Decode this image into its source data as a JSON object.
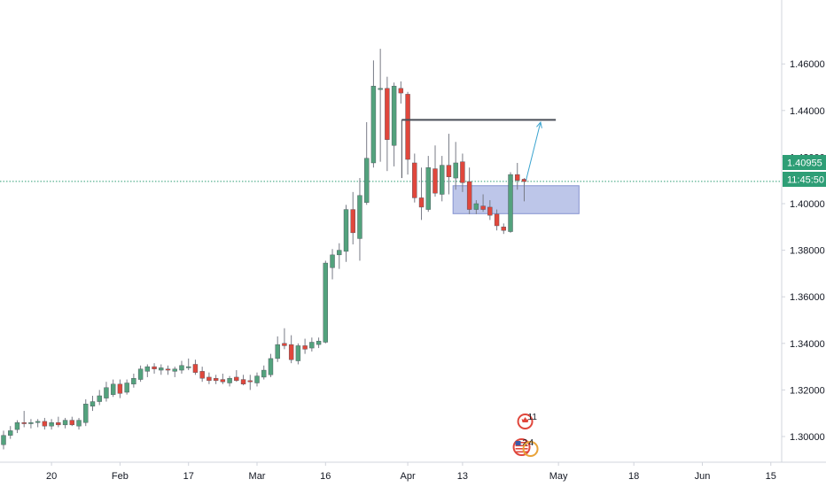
{
  "colors": {
    "up": "#53a27d",
    "down": "#e0473c",
    "wick": "#787b86",
    "price_line": "#2e9e76",
    "zone_fill": "#9aa7dd",
    "zone_stroke": "#8593d1",
    "resistance": "#4a4e58",
    "projection": "#3aa3cf",
    "axis_line": "#d1d4dc",
    "text": "#131722"
  },
  "current_price": "1.40955",
  "countdown": "11:45:50",
  "events": [
    {
      "icon": "canada-flag-icon",
      "count": "11",
      "date": "Apr 20"
    },
    {
      "icon": "usa-flag-icon",
      "count": "2",
      "date": "Apr 20"
    },
    {
      "icon": "uk-flag-icon",
      "count": "4",
      "date": "Apr 20"
    }
  ],
  "chart_data": {
    "type": "candlestick",
    "title": "",
    "xlabel": "",
    "ylabel": "",
    "ylim": [
      1.2855,
      1.4695
    ],
    "y_ticks": [
      "1.30000",
      "1.32000",
      "1.34000",
      "1.36000",
      "1.38000",
      "1.40000",
      "1.42000",
      "1.44000",
      "1.46000"
    ],
    "x_ticks": [
      "20",
      "Feb",
      "17",
      "Mar",
      "16",
      "Apr",
      "13",
      "May",
      "18",
      "Jun",
      "15"
    ],
    "grid": false,
    "legend": "none",
    "candles": [
      {
        "date": "Jan 09",
        "o": 1.2965,
        "h": 1.3025,
        "l": 1.2945,
        "c": 1.3005
      },
      {
        "date": "Jan 10",
        "o": 1.3005,
        "h": 1.3045,
        "l": 1.299,
        "c": 1.3025
      },
      {
        "date": "Jan 13",
        "o": 1.303,
        "h": 1.307,
        "l": 1.3015,
        "c": 1.306
      },
      {
        "date": "Jan 14",
        "o": 1.306,
        "h": 1.311,
        "l": 1.304,
        "c": 1.3055
      },
      {
        "date": "Jan 15",
        "o": 1.3055,
        "h": 1.3075,
        "l": 1.3035,
        "c": 1.306
      },
      {
        "date": "Jan 16",
        "o": 1.306,
        "h": 1.3075,
        "l": 1.304,
        "c": 1.3065
      },
      {
        "date": "Jan 17",
        "o": 1.3065,
        "h": 1.308,
        "l": 1.303,
        "c": 1.3045
      },
      {
        "date": "Jan 20",
        "o": 1.3045,
        "h": 1.3075,
        "l": 1.303,
        "c": 1.306
      },
      {
        "date": "Jan 21",
        "o": 1.306,
        "h": 1.3085,
        "l": 1.304,
        "c": 1.305
      },
      {
        "date": "Jan 22",
        "o": 1.305,
        "h": 1.308,
        "l": 1.3035,
        "c": 1.307
      },
      {
        "date": "Jan 23",
        "o": 1.307,
        "h": 1.3085,
        "l": 1.3045,
        "c": 1.305
      },
      {
        "date": "Jan 24",
        "o": 1.3045,
        "h": 1.308,
        "l": 1.303,
        "c": 1.307
      },
      {
        "date": "Jan 27",
        "o": 1.306,
        "h": 1.316,
        "l": 1.3045,
        "c": 1.314
      },
      {
        "date": "Jan 28",
        "o": 1.313,
        "h": 1.3175,
        "l": 1.311,
        "c": 1.315
      },
      {
        "date": "Jan 29",
        "o": 1.315,
        "h": 1.32,
        "l": 1.3135,
        "c": 1.3175
      },
      {
        "date": "Jan 30",
        "o": 1.3165,
        "h": 1.3235,
        "l": 1.315,
        "c": 1.321
      },
      {
        "date": "Jan 31",
        "o": 1.318,
        "h": 1.3245,
        "l": 1.317,
        "c": 1.3225
      },
      {
        "date": "Feb 03",
        "o": 1.3225,
        "h": 1.3245,
        "l": 1.3165,
        "c": 1.3185
      },
      {
        "date": "Feb 04",
        "o": 1.319,
        "h": 1.3245,
        "l": 1.318,
        "c": 1.323
      },
      {
        "date": "Feb 05",
        "o": 1.3225,
        "h": 1.327,
        "l": 1.321,
        "c": 1.325
      },
      {
        "date": "Feb 06",
        "o": 1.3245,
        "h": 1.3305,
        "l": 1.3235,
        "c": 1.329
      },
      {
        "date": "Feb 07",
        "o": 1.328,
        "h": 1.331,
        "l": 1.3255,
        "c": 1.33
      },
      {
        "date": "Feb 10",
        "o": 1.33,
        "h": 1.3315,
        "l": 1.327,
        "c": 1.329
      },
      {
        "date": "Feb 11",
        "o": 1.3285,
        "h": 1.331,
        "l": 1.3265,
        "c": 1.3295
      },
      {
        "date": "Feb 12",
        "o": 1.329,
        "h": 1.3305,
        "l": 1.3265,
        "c": 1.3285
      },
      {
        "date": "Feb 13",
        "o": 1.328,
        "h": 1.33,
        "l": 1.3255,
        "c": 1.329
      },
      {
        "date": "Feb 14",
        "o": 1.3285,
        "h": 1.3325,
        "l": 1.327,
        "c": 1.3305
      },
      {
        "date": "Feb 17",
        "o": 1.3295,
        "h": 1.3335,
        "l": 1.3285,
        "c": 1.33
      },
      {
        "date": "Feb 18",
        "o": 1.331,
        "h": 1.333,
        "l": 1.3265,
        "c": 1.3275
      },
      {
        "date": "Feb 19",
        "o": 1.328,
        "h": 1.33,
        "l": 1.3235,
        "c": 1.325
      },
      {
        "date": "Feb 20",
        "o": 1.3255,
        "h": 1.3275,
        "l": 1.3225,
        "c": 1.324
      },
      {
        "date": "Feb 21",
        "o": 1.325,
        "h": 1.3265,
        "l": 1.3225,
        "c": 1.324
      },
      {
        "date": "Feb 24",
        "o": 1.3245,
        "h": 1.327,
        "l": 1.3225,
        "c": 1.3235
      },
      {
        "date": "Feb 25",
        "o": 1.323,
        "h": 1.326,
        "l": 1.3215,
        "c": 1.325
      },
      {
        "date": "Feb 26",
        "o": 1.3255,
        "h": 1.3285,
        "l": 1.3235,
        "c": 1.324
      },
      {
        "date": "Feb 27",
        "o": 1.3245,
        "h": 1.3265,
        "l": 1.322,
        "c": 1.3225
      },
      {
        "date": "Feb 28",
        "o": 1.324,
        "h": 1.3265,
        "l": 1.32,
        "c": 1.3235
      },
      {
        "date": "Mar 02",
        "o": 1.323,
        "h": 1.3275,
        "l": 1.3215,
        "c": 1.326
      },
      {
        "date": "Mar 03",
        "o": 1.3255,
        "h": 1.3305,
        "l": 1.3245,
        "c": 1.3285
      },
      {
        "date": "Mar 04",
        "o": 1.3265,
        "h": 1.3355,
        "l": 1.3255,
        "c": 1.3335
      },
      {
        "date": "Mar 05",
        "o": 1.3335,
        "h": 1.343,
        "l": 1.332,
        "c": 1.3395
      },
      {
        "date": "Mar 06",
        "o": 1.34,
        "h": 1.3465,
        "l": 1.3375,
        "c": 1.339
      },
      {
        "date": "Mar 09",
        "o": 1.3395,
        "h": 1.3435,
        "l": 1.3315,
        "c": 1.333
      },
      {
        "date": "Mar 10",
        "o": 1.3325,
        "h": 1.34,
        "l": 1.331,
        "c": 1.339
      },
      {
        "date": "Mar 11",
        "o": 1.339,
        "h": 1.342,
        "l": 1.3355,
        "c": 1.3375
      },
      {
        "date": "Mar 12",
        "o": 1.338,
        "h": 1.3425,
        "l": 1.3365,
        "c": 1.3405
      },
      {
        "date": "Mar 13",
        "o": 1.3395,
        "h": 1.3425,
        "l": 1.338,
        "c": 1.341
      },
      {
        "date": "Mar 16",
        "o": 1.3405,
        "h": 1.3755,
        "l": 1.34,
        "c": 1.3745
      },
      {
        "date": "Mar 17",
        "o": 1.3725,
        "h": 1.3805,
        "l": 1.3675,
        "c": 1.378
      },
      {
        "date": "Mar 18",
        "o": 1.378,
        "h": 1.383,
        "l": 1.372,
        "c": 1.38
      },
      {
        "date": "Mar 19",
        "o": 1.3795,
        "h": 1.3995,
        "l": 1.375,
        "c": 1.3975
      },
      {
        "date": "Mar 20",
        "o": 1.3975,
        "h": 1.405,
        "l": 1.3825,
        "c": 1.3875
      },
      {
        "date": "Mar 23",
        "o": 1.385,
        "h": 1.411,
        "l": 1.3755,
        "c": 1.4035
      },
      {
        "date": "Mar 24",
        "o": 1.4005,
        "h": 1.435,
        "l": 1.3995,
        "c": 1.4195
      },
      {
        "date": "Mar 25",
        "o": 1.4175,
        "h": 1.4615,
        "l": 1.4155,
        "c": 1.4505
      },
      {
        "date": "Mar 26",
        "o": 1.449,
        "h": 1.4665,
        "l": 1.418,
        "c": 1.4495
      },
      {
        "date": "Mar 27",
        "o": 1.4495,
        "h": 1.4545,
        "l": 1.414,
        "c": 1.4275
      },
      {
        "date": "Mar 30",
        "o": 1.425,
        "h": 1.452,
        "l": 1.416,
        "c": 1.4505
      },
      {
        "date": "Mar 31",
        "o": 1.4495,
        "h": 1.4525,
        "l": 1.443,
        "c": 1.4475
      },
      {
        "date": "Apr 01",
        "o": 1.447,
        "h": 1.448,
        "l": 1.4125,
        "c": 1.419
      },
      {
        "date": "Apr 02",
        "o": 1.4175,
        "h": 1.4215,
        "l": 1.4005,
        "c": 1.4025
      },
      {
        "date": "Apr 03",
        "o": 1.4025,
        "h": 1.4155,
        "l": 1.393,
        "c": 1.3985
      },
      {
        "date": "Apr 06",
        "o": 1.3975,
        "h": 1.4205,
        "l": 1.3965,
        "c": 1.4155
      },
      {
        "date": "Apr 07",
        "o": 1.415,
        "h": 1.425,
        "l": 1.403,
        "c": 1.4045
      },
      {
        "date": "Apr 08",
        "o": 1.404,
        "h": 1.4205,
        "l": 1.401,
        "c": 1.4165
      },
      {
        "date": "Apr 09",
        "o": 1.4165,
        "h": 1.43,
        "l": 1.404,
        "c": 1.4115
      },
      {
        "date": "Apr 10",
        "o": 1.411,
        "h": 1.4265,
        "l": 1.406,
        "c": 1.4175
      },
      {
        "date": "Apr 13",
        "o": 1.418,
        "h": 1.4215,
        "l": 1.405,
        "c": 1.409
      },
      {
        "date": "Apr 14",
        "o": 1.4095,
        "h": 1.4155,
        "l": 1.3955,
        "c": 1.3975
      },
      {
        "date": "Apr 15",
        "o": 1.3975,
        "h": 1.4015,
        "l": 1.3955,
        "c": 1.4
      },
      {
        "date": "Apr 16",
        "o": 1.399,
        "h": 1.404,
        "l": 1.3965,
        "c": 1.3975
      },
      {
        "date": "Apr 17",
        "o": 1.3985,
        "h": 1.4015,
        "l": 1.393,
        "c": 1.395
      },
      {
        "date": "Apr 20",
        "o": 1.3955,
        "h": 1.3975,
        "l": 1.3885,
        "c": 1.3905
      },
      {
        "date": "Apr 21",
        "o": 1.39,
        "h": 1.3915,
        "l": 1.387,
        "c": 1.3885
      },
      {
        "date": "Apr 22",
        "o": 1.388,
        "h": 1.4135,
        "l": 1.3875,
        "c": 1.4125
      },
      {
        "date": "Apr 23",
        "o": 1.4125,
        "h": 1.4175,
        "l": 1.406,
        "c": 1.41
      },
      {
        "date": "Apr 24",
        "o": 1.4105,
        "h": 1.411,
        "l": 1.401,
        "c": 1.4095
      }
    ],
    "drawings": {
      "demand_zone": {
        "from": "Apr 10",
        "to": "May 06",
        "low": 1.3957,
        "high": 1.4077
      },
      "resistance_line": {
        "from": "Mar 31",
        "to": "May 01",
        "price": 1.436
      },
      "projection_arrow": {
        "from_date": "Apr 24",
        "from_price": 1.41,
        "to_date": "Apr 28",
        "to_price": 1.435
      }
    }
  }
}
